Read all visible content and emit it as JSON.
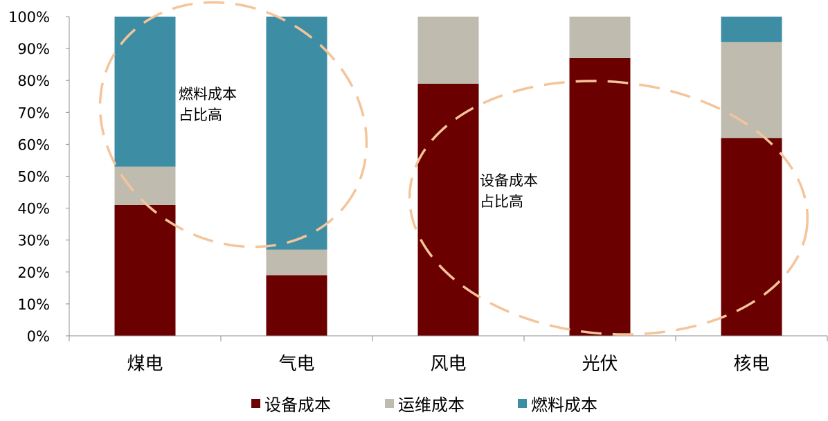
{
  "chart_data": {
    "type": "bar",
    "stacked": true,
    "categories": [
      "煤电",
      "气电",
      "风电",
      "光伏",
      "核电"
    ],
    "series": [
      {
        "name": "设备成本",
        "color": "#6b0000",
        "values": [
          41,
          19,
          79,
          87,
          62
        ]
      },
      {
        "name": "运维成本",
        "color": "#bfbcaf",
        "values": [
          12,
          8,
          21,
          13,
          30
        ]
      },
      {
        "name": "燃料成本",
        "color": "#3d8ea4",
        "values": [
          47,
          73,
          0,
          0,
          8
        ]
      }
    ],
    "yticks": [
      "0%",
      "10%",
      "20%",
      "30%",
      "40%",
      "50%",
      "60%",
      "70%",
      "80%",
      "90%",
      "100%"
    ],
    "ylim": [
      0,
      100
    ],
    "legend_position": "bottom",
    "annotations": [
      {
        "lines": [
          "燃料成本",
          "占比高"
        ],
        "highlight_color": "#f4c49a"
      },
      {
        "lines": [
          "设备成本",
          "占比高"
        ],
        "highlight_color": "#f4c49a"
      }
    ]
  }
}
